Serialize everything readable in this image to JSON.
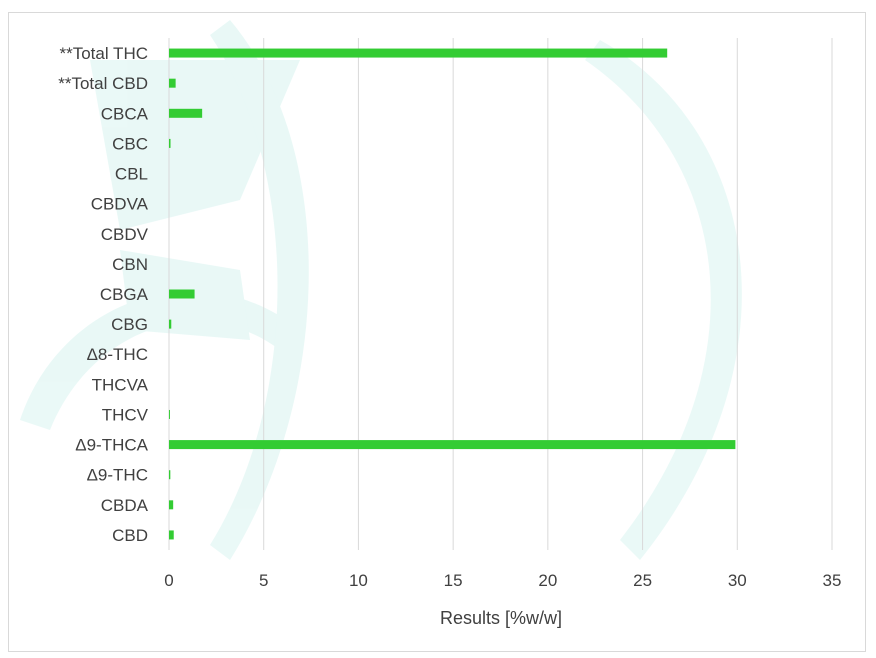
{
  "chart_data": {
    "type": "bar",
    "orientation": "horizontal",
    "title": "",
    "xlabel": "Results [%w/w]",
    "ylabel": "",
    "xlim": [
      0,
      35
    ],
    "x_ticks": [
      0,
      5,
      10,
      15,
      20,
      25,
      30,
      35
    ],
    "grid": "vertical",
    "bar_color": "#33cc33",
    "categories": [
      "**Total THC",
      "**Total CBD",
      "CBCA",
      "CBC",
      "CBL",
      "CBDVA",
      "CBDV",
      "CBN",
      "CBGA",
      "CBG",
      "Δ8-THC",
      "THCVA",
      "THCV",
      "Δ9-THCA",
      "Δ9-THC",
      "CBDA",
      "CBD"
    ],
    "values": [
      26.3,
      0.35,
      1.75,
      0.08,
      0,
      0,
      0,
      0,
      1.35,
      0.12,
      0,
      0,
      0.05,
      29.9,
      0.07,
      0.22,
      0.25
    ]
  },
  "watermark": {
    "color": "#2fc4b2"
  }
}
